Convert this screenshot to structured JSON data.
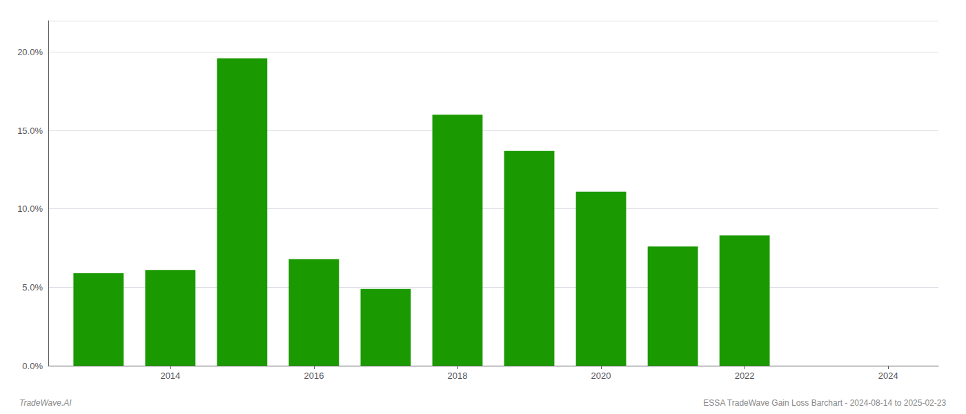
{
  "chart_data": {
    "type": "bar",
    "x": [
      2013,
      2014,
      2015,
      2016,
      2017,
      2018,
      2019,
      2020,
      2021,
      2022
    ],
    "values": [
      0.059,
      0.061,
      0.196,
      0.068,
      0.049,
      0.16,
      0.137,
      0.111,
      0.076,
      0.083
    ],
    "color": "#1a9900",
    "xlim": [
      2012.3,
      2024.7
    ],
    "xticks": [
      2014,
      2016,
      2018,
      2020,
      2022,
      2024
    ],
    "ylim": [
      0.0,
      0.22
    ],
    "yticks": [
      {
        "value": 0.0,
        "label": "0.0%"
      },
      {
        "value": 0.05,
        "label": "5.0%"
      },
      {
        "value": 0.1,
        "label": "10.0%"
      },
      {
        "value": 0.15,
        "label": "15.0%"
      },
      {
        "value": 0.2,
        "label": "20.0%"
      }
    ],
    "grid": true,
    "annotations": [
      "TradeWave.AI",
      "ESSA TradeWave Gain Loss Barchart - 2024-08-14 to 2025-02-23"
    ]
  }
}
